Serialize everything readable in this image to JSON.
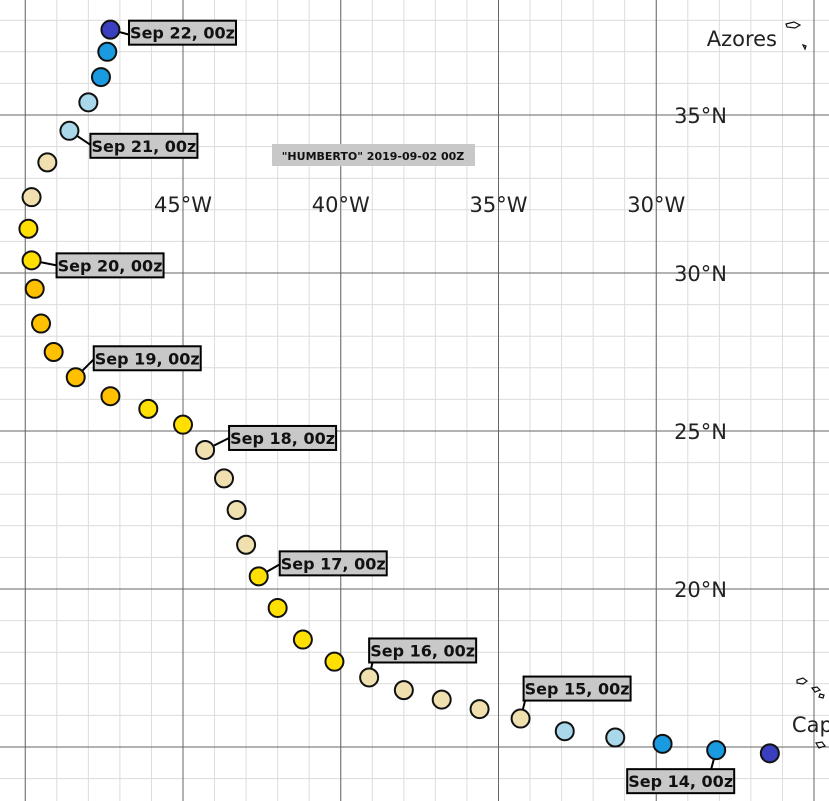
{
  "map": {
    "title": "\"HUMBERTO\" 2019-09-02 00Z",
    "lon_labels": [
      {
        "value": -45,
        "label": "45°W"
      },
      {
        "value": -40,
        "label": "40°W"
      },
      {
        "value": -35,
        "label": "35°W"
      },
      {
        "value": -30,
        "label": "30°W"
      }
    ],
    "lat_labels": [
      {
        "value": 35,
        "label": "35°N"
      },
      {
        "value": 30,
        "label": "30°N"
      },
      {
        "value": 25,
        "label": "25°N"
      },
      {
        "value": 20,
        "label": "20°N"
      }
    ],
    "places": [
      {
        "name": "Azores",
        "lon": -28.4,
        "lat": 37.4
      },
      {
        "name": "Cape Verde",
        "lon": -25.7,
        "lat": 15.7
      }
    ],
    "track": {
      "points": [
        {
          "lon": -26.4,
          "lat": 14.8,
          "color": "#3a3fbf"
        },
        {
          "lon": -28.1,
          "lat": 14.9,
          "color": "#1a9be0",
          "label": "Sep 14, 00z"
        },
        {
          "lon": -29.8,
          "lat": 15.1,
          "color": "#1a9be0"
        },
        {
          "lon": -31.3,
          "lat": 15.3,
          "color": "#a8d8ea"
        },
        {
          "lon": -32.9,
          "lat": 15.5,
          "color": "#a8d8ea"
        },
        {
          "lon": -34.3,
          "lat": 15.9,
          "color": "#f0e0b0",
          "label": "Sep 15, 00z"
        },
        {
          "lon": -35.6,
          "lat": 16.2,
          "color": "#f0e0b0"
        },
        {
          "lon": -36.8,
          "lat": 16.5,
          "color": "#f0e0b0"
        },
        {
          "lon": -38.0,
          "lat": 16.8,
          "color": "#f0e0b0"
        },
        {
          "lon": -39.1,
          "lat": 17.2,
          "color": "#f0e0b0",
          "label": "Sep 16, 00z"
        },
        {
          "lon": -40.2,
          "lat": 17.7,
          "color": "#ffe000"
        },
        {
          "lon": -41.2,
          "lat": 18.4,
          "color": "#ffe000"
        },
        {
          "lon": -42.0,
          "lat": 19.4,
          "color": "#ffe000"
        },
        {
          "lon": -42.6,
          "lat": 20.4,
          "color": "#ffe000",
          "label": "Sep 17, 00z"
        },
        {
          "lon": -43.0,
          "lat": 21.4,
          "color": "#f0e0b0"
        },
        {
          "lon": -43.3,
          "lat": 22.5,
          "color": "#f0e0b0"
        },
        {
          "lon": -43.7,
          "lat": 23.5,
          "color": "#f0e0b0"
        },
        {
          "lon": -44.3,
          "lat": 24.4,
          "color": "#f0e0b0",
          "label": "Sep 18, 00z"
        },
        {
          "lon": -45.0,
          "lat": 25.2,
          "color": "#ffe000"
        },
        {
          "lon": -46.1,
          "lat": 25.7,
          "color": "#ffe000"
        },
        {
          "lon": -47.3,
          "lat": 26.1,
          "color": "#ffc000"
        },
        {
          "lon": -48.4,
          "lat": 26.7,
          "color": "#ffc000",
          "label": "Sep 19, 00z"
        },
        {
          "lon": -49.1,
          "lat": 27.5,
          "color": "#ffc000"
        },
        {
          "lon": -49.5,
          "lat": 28.4,
          "color": "#ffc000"
        },
        {
          "lon": -49.7,
          "lat": 29.5,
          "color": "#ffc000"
        },
        {
          "lon": -49.8,
          "lat": 30.4,
          "color": "#ffe000",
          "label": "Sep 20, 00z"
        },
        {
          "lon": -49.9,
          "lat": 31.4,
          "color": "#ffe000"
        },
        {
          "lon": -49.8,
          "lat": 32.4,
          "color": "#f0e0b0"
        },
        {
          "lon": -49.3,
          "lat": 33.5,
          "color": "#f0e0b0"
        },
        {
          "lon": -48.6,
          "lat": 34.5,
          "color": "#a8d8ea",
          "label": "Sep 21, 00z"
        },
        {
          "lon": -48.0,
          "lat": 35.4,
          "color": "#a8d8ea"
        },
        {
          "lon": -47.6,
          "lat": 36.2,
          "color": "#1a9be0"
        },
        {
          "lon": -47.4,
          "lat": 37.0,
          "color": "#1a9be0"
        },
        {
          "lon": -47.3,
          "lat": 37.7,
          "color": "#3a3fbf",
          "label": "Sep 22, 00z"
        }
      ]
    }
  }
}
